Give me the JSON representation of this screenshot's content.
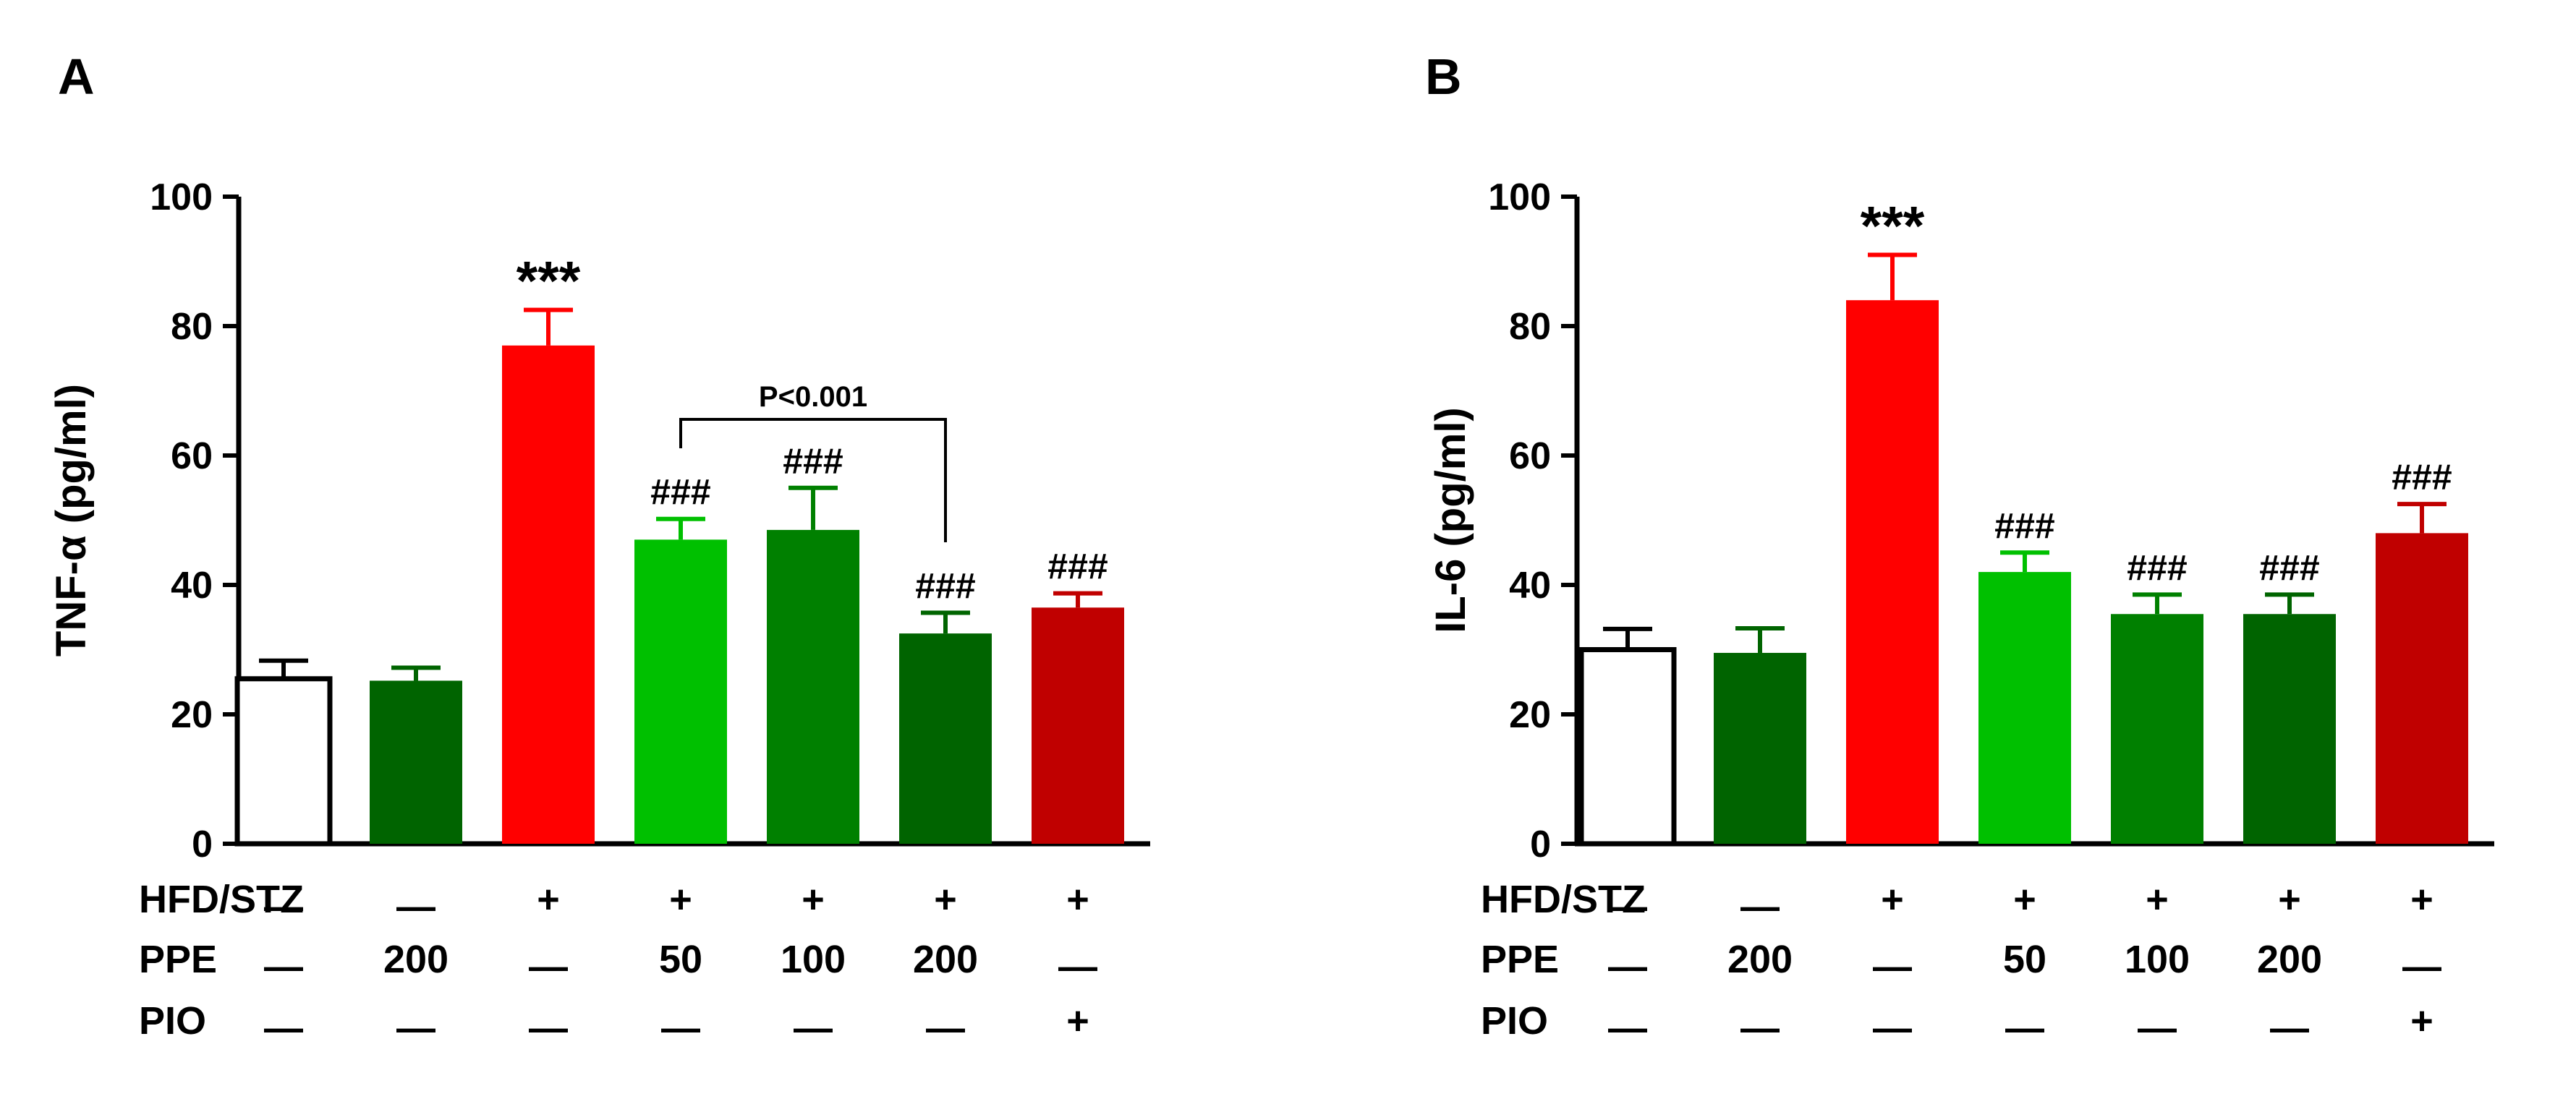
{
  "chart_data": [
    {
      "type": "bar",
      "panel_label": "A",
      "ylabel": "TNF-α (pg/ml)",
      "ylim": [
        0,
        100
      ],
      "yticks": [
        "0",
        "20",
        "40",
        "60",
        "80",
        "100"
      ],
      "values": [
        25.5,
        25.2,
        77,
        47,
        48.5,
        32.5,
        36.5
      ],
      "errors": [
        2.8,
        2,
        5.5,
        3.2,
        6.5,
        3.2,
        2.2
      ],
      "colors": [
        "#ffffff",
        "#006400",
        "#ff0000",
        "#00c000",
        "#008000",
        "#006400",
        "#c00000"
      ],
      "annotations": [
        "",
        "",
        "***",
        "###",
        "###",
        "###",
        "###"
      ],
      "bracket": {
        "from": 3,
        "to": 5,
        "label": "P<0.001"
      },
      "treatment_rows": [
        {
          "label": "HFD/STZ",
          "values": [
            "—",
            "—",
            "+",
            "+",
            "+",
            "+",
            "+"
          ]
        },
        {
          "label": "PPE",
          "values": [
            "—",
            "200",
            "—",
            "50",
            "100",
            "200",
            "—"
          ]
        },
        {
          "label": "PIO",
          "values": [
            "—",
            "—",
            "—",
            "—",
            "—",
            "—",
            "+"
          ]
        }
      ]
    },
    {
      "type": "bar",
      "panel_label": "B",
      "ylabel": "IL-6 (pg/ml)",
      "ylim": [
        0,
        100
      ],
      "yticks": [
        "0",
        "20",
        "40",
        "60",
        "80",
        "100"
      ],
      "values": [
        30,
        29.5,
        84,
        42,
        35.5,
        35.5,
        48
      ],
      "errors": [
        3.2,
        3.8,
        7,
        3,
        3,
        3,
        4.5
      ],
      "colors": [
        "#ffffff",
        "#006400",
        "#ff0000",
        "#00c000",
        "#008000",
        "#006400",
        "#c00000"
      ],
      "annotations": [
        "",
        "",
        "***",
        "###",
        "###",
        "###",
        "###"
      ],
      "bracket": null,
      "treatment_rows": [
        {
          "label": "HFD/STZ",
          "values": [
            "—",
            "—",
            "+",
            "+",
            "+",
            "+",
            "+"
          ]
        },
        {
          "label": "PPE",
          "values": [
            "—",
            "200",
            "—",
            "50",
            "100",
            "200",
            "—"
          ]
        },
        {
          "label": "PIO",
          "values": [
            "—",
            "—",
            "—",
            "—",
            "—",
            "—",
            "+"
          ]
        }
      ]
    }
  ]
}
